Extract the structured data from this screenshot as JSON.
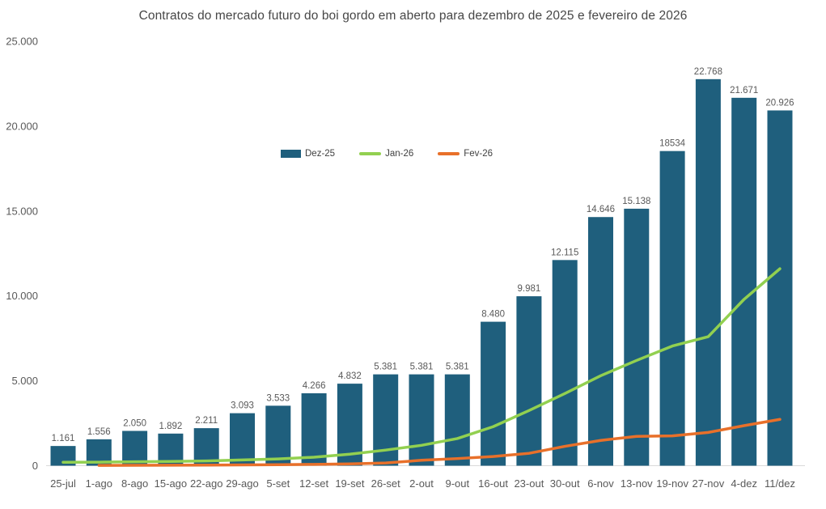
{
  "title": "Contratos do mercado futuro do boi gordo em aberto para dezembro de 2025 e fevereiro de 2026",
  "chart_data": {
    "type": "bar",
    "subtype": "bar-line-combo",
    "title": "Contratos do mercado futuro do boi gordo em aberto para dezembro de 2025 e fevereiro de 2026",
    "xlabel": "",
    "ylabel": "",
    "ylim": [
      0,
      25000
    ],
    "ytick_step": 5000,
    "ytick_labels": [
      "0",
      "5.000",
      "10.000",
      "15.000",
      "20.000",
      "25.000"
    ],
    "grid": false,
    "legend_position": "upper-center-inside",
    "axis_color": "#d9d9d9",
    "categories": [
      "25-jul",
      "1-ago",
      "8-ago",
      "15-ago",
      "22-ago",
      "29-ago",
      "5-set",
      "12-set",
      "19-set",
      "26-set",
      "2-out",
      "9-out",
      "16-out",
      "23-out",
      "30-out",
      "6-nov",
      "13-nov",
      "19-nov",
      "27-nov",
      "4-dez",
      "11/dez"
    ],
    "series": [
      {
        "name": "Dez-25",
        "type": "bar",
        "color": "#1f5f7d",
        "values": [
          1161,
          1556,
          2050,
          1892,
          2211,
          3093,
          3533,
          4266,
          4832,
          5381,
          5381,
          5381,
          8480,
          9981,
          12115,
          14646,
          15138,
          18534,
          22768,
          21671,
          20926
        ],
        "labels": [
          "1.161",
          "1.556",
          "2.050",
          "1.892",
          "2.211",
          "3.093",
          "3.533",
          "4.266",
          "4.832",
          "5.381",
          "5.381",
          "5.381",
          "8.480",
          "9.981",
          "12.115",
          "14.646",
          "15.138",
          "18534",
          "22.768",
          "21.671",
          "20.926"
        ]
      },
      {
        "name": "Jan-26",
        "type": "line",
        "color": "#92d050",
        "values": [
          200,
          210,
          230,
          250,
          280,
          340,
          400,
          500,
          680,
          920,
          1200,
          1600,
          2300,
          3250,
          4250,
          5300,
          6200,
          7050,
          7600,
          9800,
          11600
        ]
      },
      {
        "name": "Fev-26",
        "type": "line",
        "color": "#e8702a",
        "values": [
          null,
          20,
          25,
          30,
          35,
          45,
          60,
          80,
          110,
          160,
          320,
          420,
          540,
          730,
          1140,
          1490,
          1730,
          1760,
          1960,
          2360,
          2730
        ]
      }
    ]
  }
}
